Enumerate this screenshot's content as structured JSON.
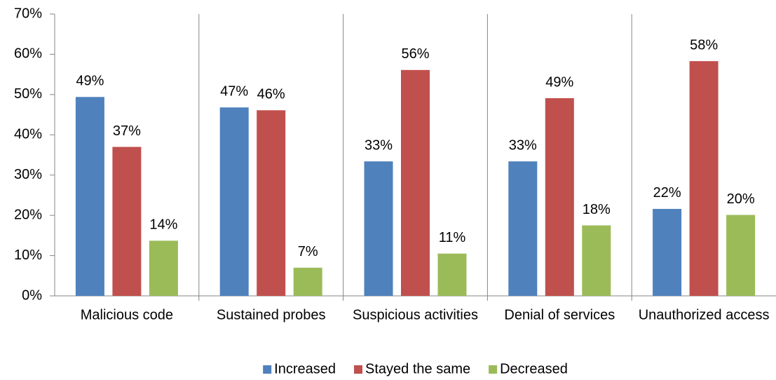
{
  "chart_data": {
    "type": "bar",
    "categories": [
      "Malicious code",
      "Sustained probes",
      "Suspicious activities",
      "Denial of services",
      "Unauthorized access"
    ],
    "series": [
      {
        "name": "Increased",
        "color": "#4f81bd",
        "values": [
          49.4,
          46.8,
          33.4,
          33.4,
          21.6
        ],
        "value_labels": [
          "49%",
          "47%",
          "33%",
          "33%",
          "22%"
        ]
      },
      {
        "name": "Stayed the same",
        "color": "#c0504d",
        "values": [
          37,
          46.1,
          56.1,
          49.1,
          58.3
        ],
        "value_labels": [
          "37%",
          "46%",
          "56%",
          "49%",
          "58%"
        ]
      },
      {
        "name": "Decreased",
        "color": "#9bbb59",
        "values": [
          13.7,
          7,
          10.5,
          17.5,
          20.1
        ],
        "value_labels": [
          "14%",
          "7%",
          "11%",
          "18%",
          "20%"
        ]
      }
    ],
    "ylim": [
      0,
      70
    ],
    "yticks": [
      {
        "value": 0,
        "label": "0%"
      },
      {
        "value": 10,
        "label": "10%"
      },
      {
        "value": 20,
        "label": "20%"
      },
      {
        "value": 30,
        "label": "30%"
      },
      {
        "value": 40,
        "label": "40%"
      },
      {
        "value": 50,
        "label": "50%"
      },
      {
        "value": 60,
        "label": "60%"
      },
      {
        "value": 70,
        "label": "70%"
      }
    ],
    "legend": "bottom"
  }
}
